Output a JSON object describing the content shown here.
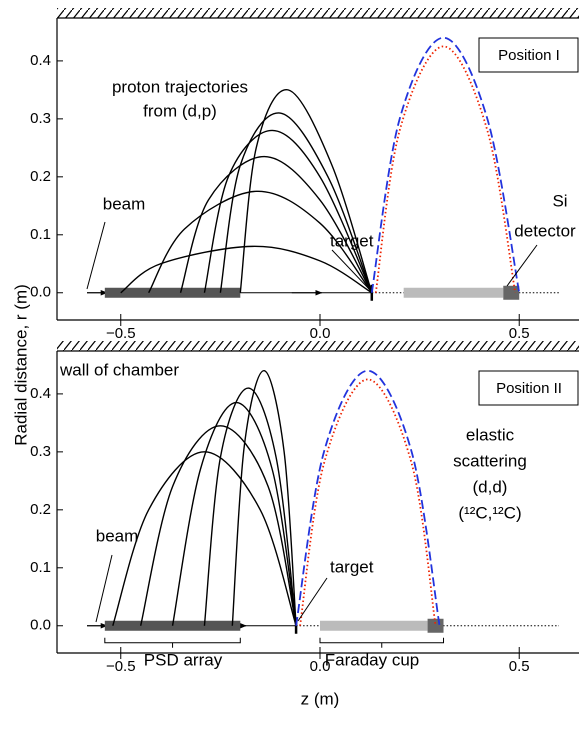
{
  "chart_data": [
    {
      "type": "line",
      "y_label": "Radial distance, r (m)",
      "legend_label": "Position I",
      "annotations": [
        "proton trajectories",
        "from (d,p)",
        "beam",
        "target",
        "Si",
        "detector"
      ],
      "xlim": [
        -0.66,
        0.65
      ],
      "ylim": [
        -0.047,
        0.474
      ],
      "xticks": [
        {
          "value": -0.5,
          "label": "−0.5"
        },
        {
          "value": 0,
          "label": "0.0"
        },
        {
          "value": 0.5,
          "label": "0.5"
        }
      ],
      "yticks": [
        {
          "value": 0,
          "label": "0.0"
        },
        0.1,
        0.2,
        0.3,
        0.4
      ],
      "bars": [
        {
          "range": [
            -0.54,
            -0.2
          ],
          "color": "#555555"
        },
        {
          "range": [
            0.21,
            0.46
          ],
          "color": "#bbbbbb"
        },
        {
          "range": [
            0.46,
            0.5
          ],
          "color": "#666666"
        }
      ],
      "series": [
        {
          "color": "#000000",
          "style": "solid",
          "x": [
            -0.5,
            -0.4,
            -0.17,
            0.0,
            0.13
          ],
          "values": [
            0,
            0.05,
            0.08,
            0.055,
            0
          ]
        },
        {
          "color": "#000000",
          "style": "solid",
          "x": [
            -0.43,
            -0.34,
            -0.16,
            0.0,
            0.13
          ],
          "values": [
            0,
            0.11,
            0.175,
            0.12,
            0
          ]
        },
        {
          "color": "#000000",
          "style": "solid",
          "x": [
            -0.35,
            -0.28,
            -0.14,
            0.0,
            0.13
          ],
          "values": [
            0,
            0.16,
            0.235,
            0.16,
            0
          ]
        },
        {
          "color": "#000000",
          "style": "solid",
          "x": [
            -0.29,
            -0.23,
            -0.12,
            0.0,
            0.13
          ],
          "values": [
            0,
            0.2,
            0.28,
            0.2,
            0
          ]
        },
        {
          "color": "#000000",
          "style": "solid",
          "x": [
            -0.25,
            -0.2,
            -0.1,
            0.02,
            0.13
          ],
          "values": [
            0,
            0.22,
            0.31,
            0.2,
            0
          ]
        },
        {
          "color": "#000000",
          "style": "solid",
          "x": [
            -0.2,
            -0.16,
            -0.08,
            0.03,
            0.13
          ],
          "values": [
            0,
            0.25,
            0.35,
            0.22,
            0
          ]
        },
        {
          "color": "#2233dd",
          "style": "dashed",
          "x": [
            0.13,
            0.2,
            0.31,
            0.42,
            0.5
          ],
          "values": [
            0,
            0.3,
            0.44,
            0.3,
            0
          ]
        },
        {
          "color": "#ee2200",
          "style": "dotted",
          "x": [
            0.14,
            0.2,
            0.31,
            0.42,
            0.49
          ],
          "values": [
            0,
            0.28,
            0.425,
            0.28,
            0
          ]
        }
      ]
    },
    {
      "type": "line",
      "x_label": "z (m)",
      "legend_label": "Position II",
      "annotations": [
        "wall of chamber",
        "beam",
        "target",
        "elastic",
        "scattering",
        "(d,d)",
        "(¹²C,¹²C)",
        "PSD array",
        "Faraday cup"
      ],
      "xlim": [
        -0.66,
        0.65
      ],
      "ylim": [
        -0.047,
        0.474
      ],
      "xticks": [
        {
          "value": -0.5,
          "label": "−0.5"
        },
        {
          "value": 0,
          "label": "0.0"
        },
        {
          "value": 0.5,
          "label": "0.5"
        }
      ],
      "yticks": [
        {
          "value": 0,
          "label": "0.0"
        },
        0.1,
        0.2,
        0.3,
        0.4
      ],
      "bars": [
        {
          "range": [
            -0.54,
            -0.2
          ],
          "color": "#555555"
        },
        {
          "range": [
            0.0,
            0.27
          ],
          "color": "#bbbbbb"
        },
        {
          "range": [
            0.27,
            0.31
          ],
          "color": "#666666"
        }
      ],
      "series": [
        {
          "color": "#000000",
          "style": "solid",
          "x": [
            -0.52,
            -0.43,
            -0.29,
            -0.15,
            -0.06
          ],
          "values": [
            0,
            0.2,
            0.3,
            0.2,
            0
          ]
        },
        {
          "color": "#000000",
          "style": "solid",
          "x": [
            -0.45,
            -0.37,
            -0.25,
            -0.13,
            -0.06
          ],
          "values": [
            0,
            0.24,
            0.345,
            0.24,
            0
          ]
        },
        {
          "color": "#000000",
          "style": "solid",
          "x": [
            -0.37,
            -0.3,
            -0.21,
            -0.12,
            -0.06
          ],
          "values": [
            0,
            0.27,
            0.385,
            0.27,
            0
          ]
        },
        {
          "color": "#000000",
          "style": "solid",
          "x": [
            -0.29,
            -0.25,
            -0.18,
            -0.11,
            -0.06
          ],
          "values": [
            0,
            0.29,
            0.41,
            0.29,
            0
          ]
        },
        {
          "color": "#000000",
          "style": "solid",
          "x": [
            -0.22,
            -0.19,
            -0.14,
            -0.09,
            -0.06
          ],
          "values": [
            0,
            0.31,
            0.44,
            0.3,
            0
          ]
        },
        {
          "color": "#2233dd",
          "style": "dashed",
          "x": [
            -0.06,
            0.01,
            0.12,
            0.23,
            0.3
          ],
          "values": [
            0,
            0.3,
            0.44,
            0.3,
            0
          ]
        },
        {
          "color": "#ee2200",
          "style": "dotted",
          "x": [
            -0.05,
            0.01,
            0.12,
            0.23,
            0.29
          ],
          "values": [
            0,
            0.28,
            0.425,
            0.28,
            0
          ]
        }
      ]
    }
  ]
}
